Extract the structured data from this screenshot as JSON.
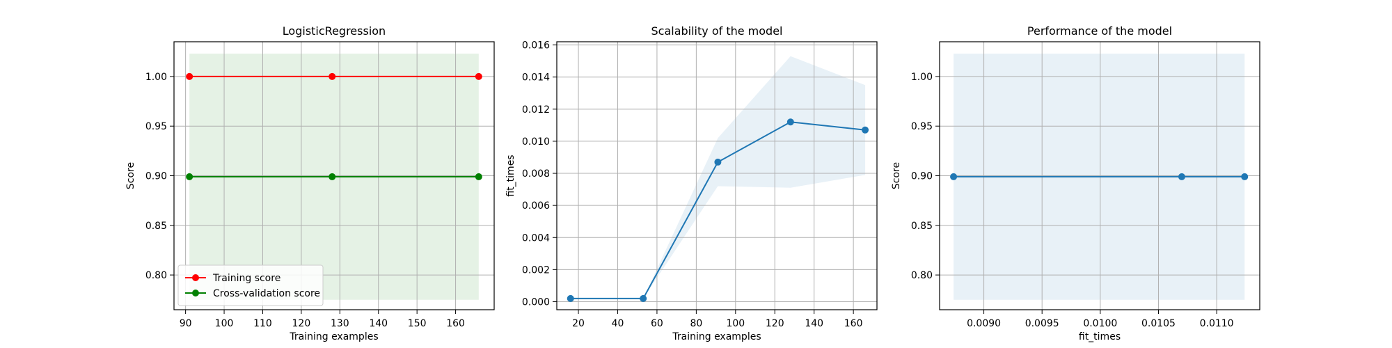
{
  "chart_data": [
    {
      "type": "line",
      "title": "LogisticRegression",
      "xlabel": "Training examples",
      "ylabel": "Score",
      "xlim": [
        87,
        170
      ],
      "ylim": [
        0.765,
        1.035
      ],
      "xticks": [
        90,
        100,
        110,
        120,
        130,
        140,
        150,
        160
      ],
      "yticks": [
        0.8,
        0.85,
        0.9,
        0.95,
        1.0
      ],
      "xtick_labels": [
        "90",
        "100",
        "110",
        "120",
        "130",
        "140",
        "150",
        "160"
      ],
      "ytick_labels": [
        "0.80",
        "0.85",
        "0.90",
        "0.95",
        "1.00"
      ],
      "grid": true,
      "legend_position": "lower-left",
      "x": [
        91,
        128,
        166
      ],
      "series": [
        {
          "name": "Training score",
          "color": "#ff0000",
          "values": [
            1.0,
            1.0,
            1.0
          ],
          "band_lower": [
            1.0,
            1.0,
            1.0
          ],
          "band_upper": [
            1.0,
            1.0,
            1.0
          ]
        },
        {
          "name": "Cross-validation score",
          "color": "#008000",
          "values": [
            0.899,
            0.899,
            0.899
          ],
          "band_lower": [
            0.775,
            0.775,
            0.775
          ],
          "band_upper": [
            1.023,
            1.023,
            1.023
          ]
        }
      ]
    },
    {
      "type": "line",
      "title": "Scalability of the model",
      "xlabel": "Training examples",
      "ylabel": "fit_times",
      "xlim": [
        9,
        172
      ],
      "ylim": [
        -0.0005,
        0.0162
      ],
      "xticks": [
        20,
        40,
        60,
        80,
        100,
        120,
        140,
        160
      ],
      "yticks": [
        0,
        0.002,
        0.004,
        0.006,
        0.008,
        0.01,
        0.012,
        0.014,
        0.016
      ],
      "xtick_labels": [
        "20",
        "40",
        "60",
        "80",
        "100",
        "120",
        "140",
        "160"
      ],
      "ytick_labels": [
        "0.000",
        "0.002",
        "0.004",
        "0.006",
        "0.008",
        "0.010",
        "0.012",
        "0.014",
        "0.016"
      ],
      "grid": true,
      "x": [
        16,
        53,
        91,
        128,
        166
      ],
      "series": [
        {
          "color": "#1f77b4",
          "values": [
            0.0002,
            0.0002,
            0.0087,
            0.0112,
            0.0107
          ],
          "band_lower": [
            0.0002,
            0.0002,
            0.0072,
            0.0071,
            0.0079
          ],
          "band_upper": [
            0.0002,
            0.0002,
            0.0102,
            0.0153,
            0.0135
          ]
        }
      ]
    },
    {
      "type": "line",
      "title": "Performance of the model",
      "xlabel": "fit_times",
      "ylabel": "Score",
      "xlim": [
        0.00862,
        0.01137
      ],
      "ylim": [
        0.765,
        1.035
      ],
      "xticks": [
        0.009,
        0.0095,
        0.01,
        0.0105,
        0.011
      ],
      "yticks": [
        0.8,
        0.85,
        0.9,
        0.95,
        1.0
      ],
      "xtick_labels": [
        "0.0090",
        "0.0095",
        "0.0100",
        "0.0105",
        "0.0110"
      ],
      "ytick_labels": [
        "0.80",
        "0.85",
        "0.90",
        "0.95",
        "1.00"
      ],
      "grid": true,
      "x": [
        0.00874,
        0.0107,
        0.01124
      ],
      "series": [
        {
          "color": "#1f77b4",
          "values": [
            0.899,
            0.899,
            0.899
          ],
          "band_lower": [
            0.775,
            0.775,
            0.775
          ],
          "band_upper": [
            1.023,
            1.023,
            1.023
          ]
        }
      ]
    }
  ]
}
